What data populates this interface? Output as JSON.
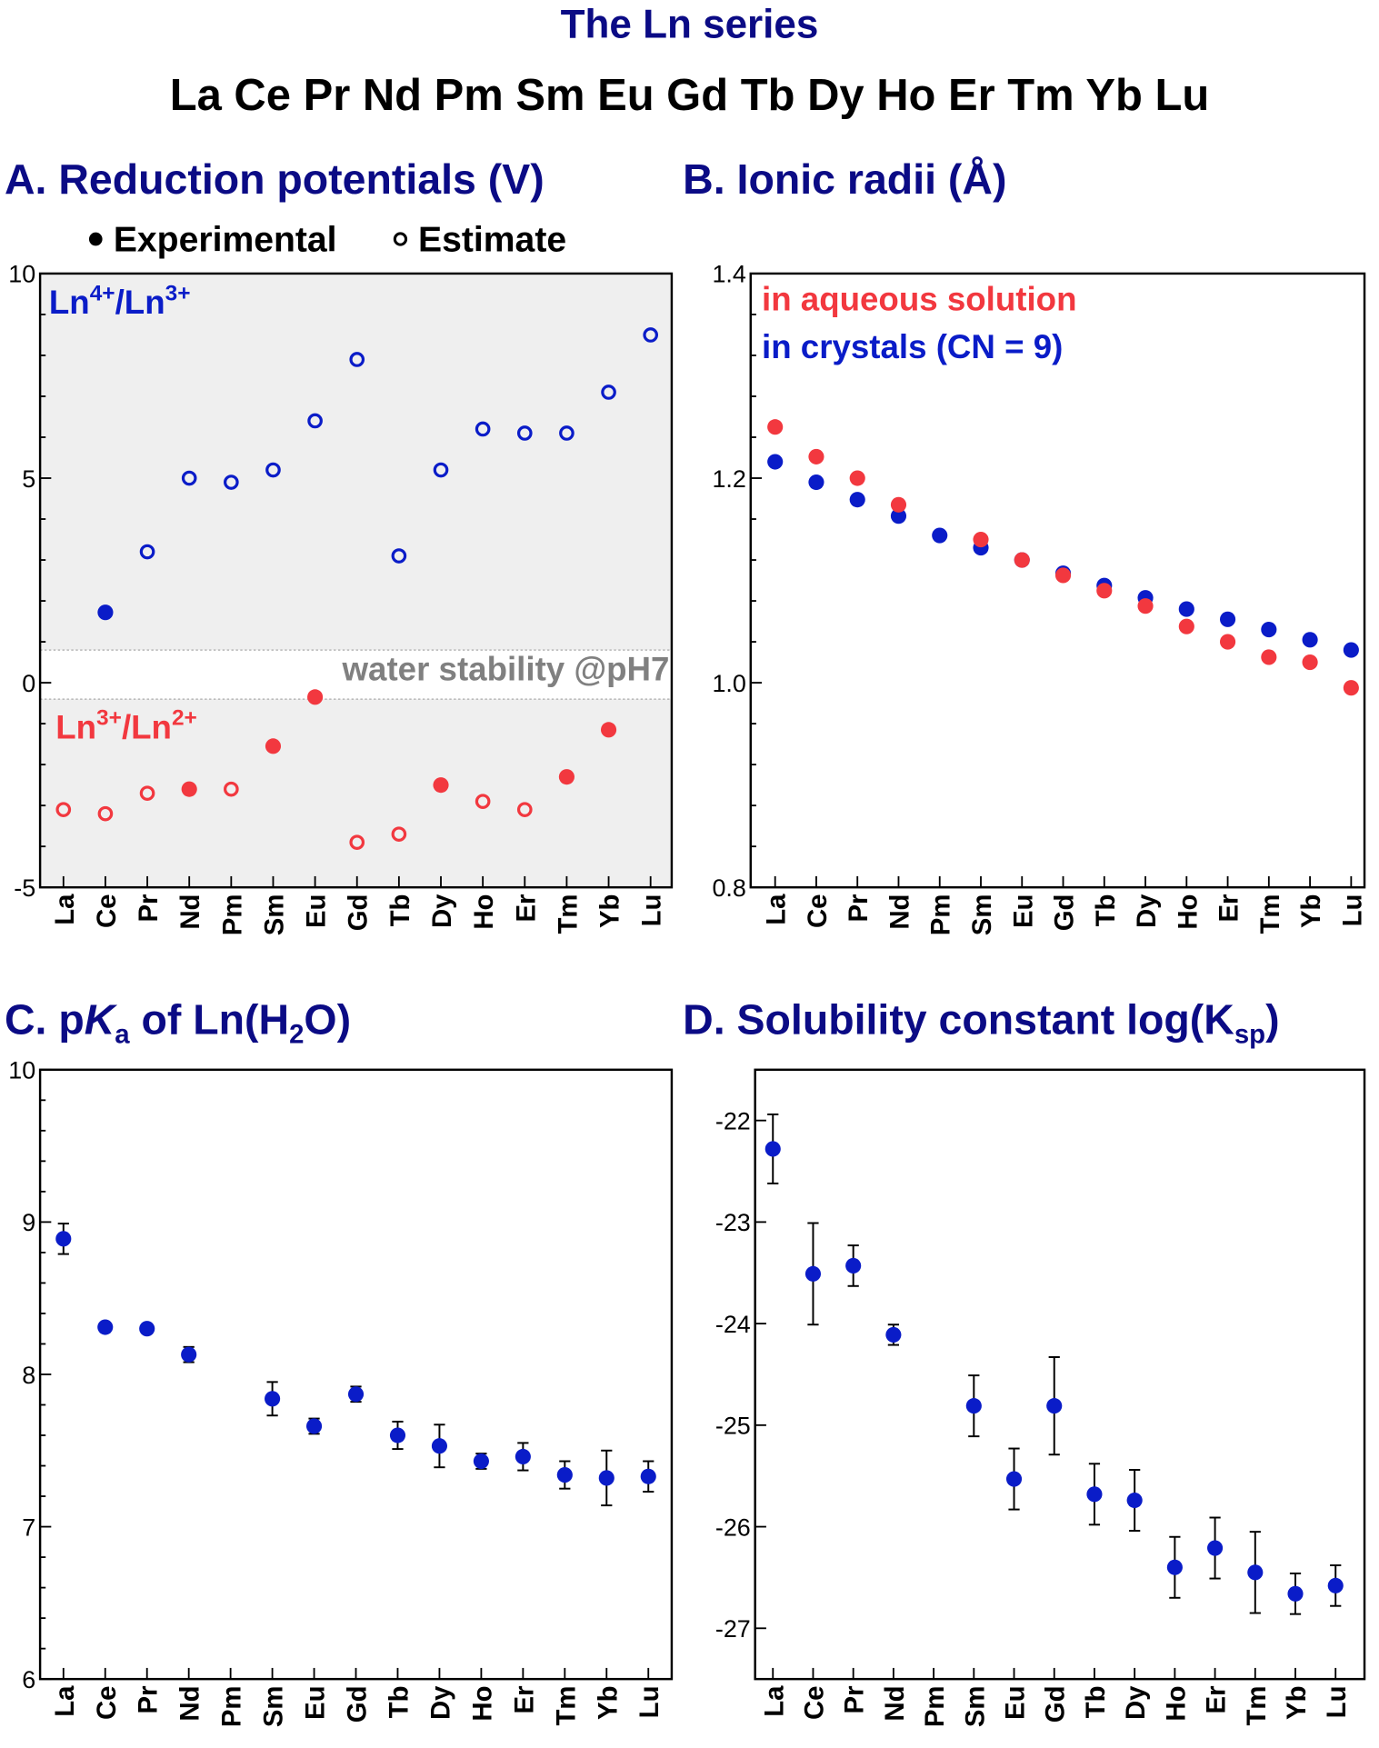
{
  "header": {
    "title": "The Ln series",
    "elements_line": "La Ce Pr Nd Pm Sm Eu Gd Tb Dy Ho Er Tm Yb Lu"
  },
  "colors": {
    "navy": "#0b0b85",
    "blue": "#0a1cc8",
    "red": "#f2383f",
    "gray_text": "#808080",
    "panel_bg": "#efefef"
  },
  "legend": {
    "experimental": "Experimental",
    "estimate": "Estimate"
  },
  "chart_data": [
    {
      "id": "A",
      "type": "scatter",
      "title": "A. Reduction potentials (V)",
      "categories": [
        "La",
        "Ce",
        "Pr",
        "Nd",
        "Pm",
        "Sm",
        "Eu",
        "Gd",
        "Tb",
        "Dy",
        "Ho",
        "Er",
        "Tm",
        "Yb",
        "Lu"
      ],
      "ylim": [
        -5,
        10
      ],
      "yticks": [
        -5,
        0,
        5,
        10
      ],
      "yminor_step": 1,
      "background": "shaded",
      "band": {
        "label": "water stability @pH7",
        "range": [
          -0.4,
          0.8
        ]
      },
      "series": [
        {
          "name": "Ln4+/Ln3+",
          "label_main": "Ln",
          "label_sup1": "4+",
          "label_mid": "/Ln",
          "label_sup2": "3+",
          "color": "#0a1cc8",
          "values": [
            null,
            1.72,
            3.2,
            5.0,
            4.9,
            5.2,
            6.4,
            7.9,
            3.1,
            5.2,
            6.2,
            6.1,
            6.1,
            7.1,
            8.5
          ],
          "experimental": [
            false,
            true,
            false,
            false,
            false,
            false,
            false,
            false,
            false,
            false,
            false,
            false,
            false,
            false,
            false
          ]
        },
        {
          "name": "Ln3+/Ln2+",
          "label_main": "Ln",
          "label_sup1": "3+",
          "label_mid": "/Ln",
          "label_sup2": "2+",
          "color": "#f2383f",
          "values": [
            -3.1,
            -3.2,
            -2.7,
            -2.6,
            -2.6,
            -1.55,
            -0.35,
            -3.9,
            -3.7,
            -2.5,
            -2.9,
            -3.1,
            -2.3,
            -1.15,
            null
          ],
          "experimental": [
            false,
            false,
            false,
            true,
            false,
            true,
            true,
            false,
            false,
            true,
            false,
            false,
            true,
            true,
            false
          ]
        }
      ]
    },
    {
      "id": "B",
      "type": "scatter",
      "title": "B. Ionic radii (Å)",
      "categories": [
        "La",
        "Ce",
        "Pr",
        "Nd",
        "Pm",
        "Sm",
        "Eu",
        "Gd",
        "Tb",
        "Dy",
        "Ho",
        "Er",
        "Tm",
        "Yb",
        "Lu"
      ],
      "ylim": [
        0.8,
        1.4
      ],
      "yticks": [
        0.8,
        1.0,
        1.2,
        1.4
      ],
      "yminor_step": 0.04,
      "series": [
        {
          "name": "in crystals (CN = 9)",
          "color": "#0a1cc8",
          "values": [
            1.216,
            1.196,
            1.179,
            1.163,
            1.144,
            1.132,
            1.12,
            1.107,
            1.095,
            1.083,
            1.072,
            1.062,
            1.052,
            1.042,
            1.032
          ]
        },
        {
          "name": "in aqueous solution",
          "color": "#f2383f",
          "values": [
            1.25,
            1.221,
            1.2,
            1.174,
            null,
            1.14,
            1.12,
            1.105,
            1.09,
            1.075,
            1.055,
            1.04,
            1.025,
            1.02,
            0.995
          ]
        }
      ]
    },
    {
      "id": "C",
      "type": "scatter",
      "title_prefix": "C. p",
      "title_italic": "K",
      "title_sub": "a",
      "title_mid": " of Ln(H",
      "title_sub2": "2",
      "title_suffix": "O)",
      "categories": [
        "La",
        "Ce",
        "Pr",
        "Nd",
        "Pm",
        "Sm",
        "Eu",
        "Gd",
        "Tb",
        "Dy",
        "Ho",
        "Er",
        "Tm",
        "Yb",
        "Lu"
      ],
      "ylim": [
        6,
        10
      ],
      "yticks": [
        6,
        7,
        8,
        9,
        10
      ],
      "yminor_step": 0.2,
      "series": [
        {
          "name": "pKa",
          "color": "#0a1cc8",
          "values": [
            8.89,
            8.31,
            8.3,
            8.13,
            null,
            7.84,
            7.66,
            7.87,
            7.6,
            7.53,
            7.43,
            7.46,
            7.34,
            7.32,
            7.33
          ],
          "errors": [
            0.1,
            0.03,
            0.03,
            0.05,
            null,
            0.11,
            0.05,
            0.05,
            0.09,
            0.14,
            0.05,
            0.09,
            0.09,
            0.18,
            0.1
          ]
        }
      ]
    },
    {
      "id": "D",
      "type": "scatter",
      "title_prefix": "D. Solubility constant log(K",
      "title_sub": "sp",
      "title_suffix": ")",
      "categories": [
        "La",
        "Ce",
        "Pr",
        "Nd",
        "Pm",
        "Sm",
        "Eu",
        "Gd",
        "Tb",
        "Dy",
        "Ho",
        "Er",
        "Tm",
        "Yb",
        "Lu"
      ],
      "ylim": [
        -27.5,
        -21.5
      ],
      "yticks": [
        -27,
        -26,
        -25,
        -24,
        -23,
        -22
      ],
      "series": [
        {
          "name": "log(Ksp)",
          "color": "#0a1cc8",
          "values": [
            -22.28,
            -23.51,
            -23.43,
            -24.11,
            null,
            -24.81,
            -25.53,
            -24.81,
            -25.68,
            -25.74,
            -26.4,
            -26.21,
            -26.45,
            -26.66,
            -26.58
          ],
          "errors": [
            0.34,
            0.5,
            0.2,
            0.1,
            null,
            0.3,
            0.3,
            0.48,
            0.3,
            0.3,
            0.3,
            0.3,
            0.4,
            0.2,
            0.2
          ]
        }
      ]
    }
  ]
}
